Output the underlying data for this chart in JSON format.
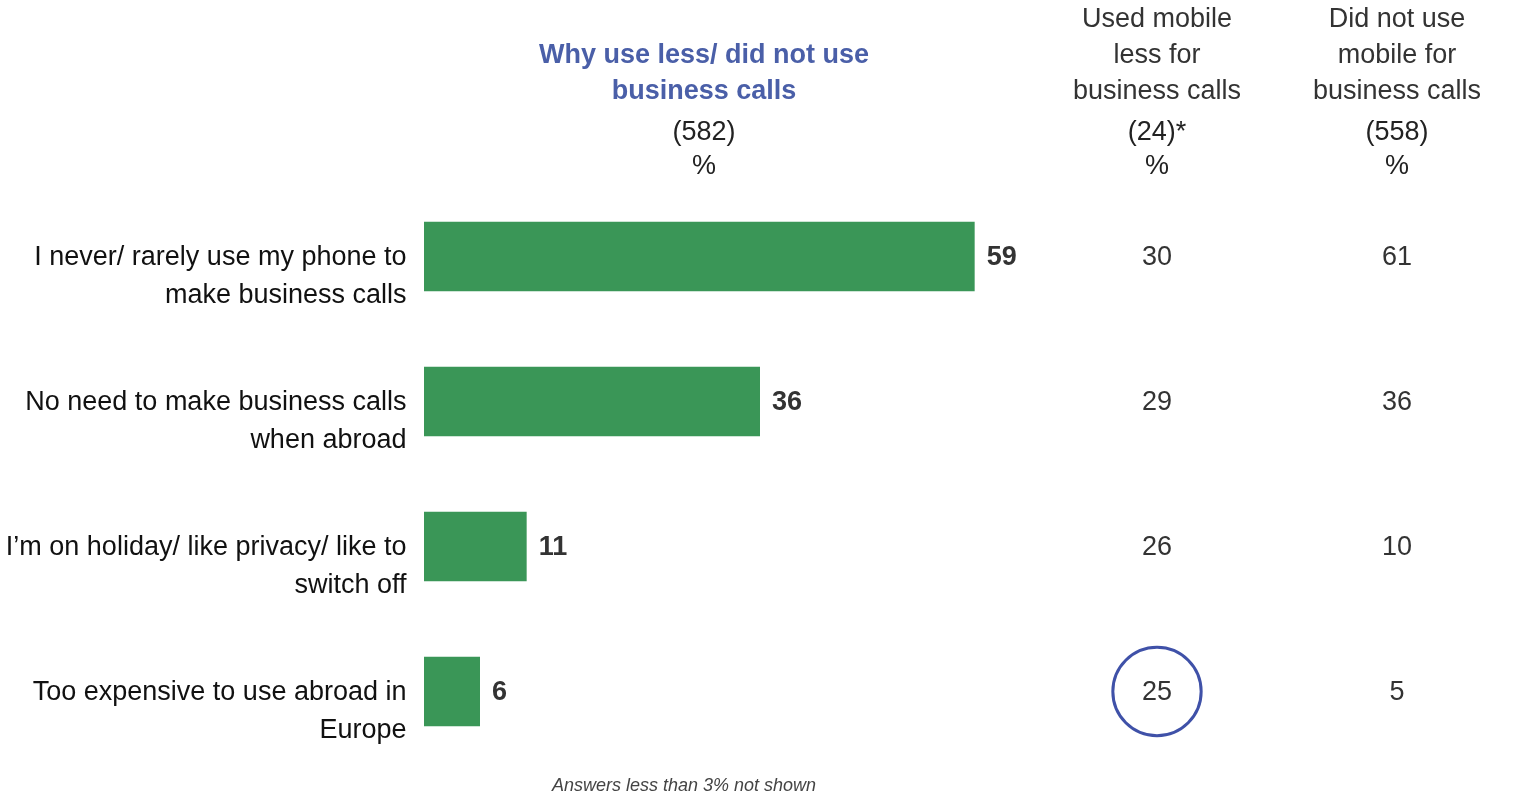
{
  "chart_data": [
    {
      "type": "bar",
      "orientation": "horizontal",
      "title": "Why use less/ did not use\nbusiness calls",
      "subtitle": "(582)\n%",
      "categories": [
        "I never/ rarely use my phone to\nmake business calls",
        "No need to make business calls\nwhen abroad",
        "I’m on holiday/ like privacy/ like to\nswitch off",
        "Too expensive to use abroad in\nEurope"
      ],
      "values": [
        59,
        36,
        11,
        6
      ],
      "color": "#3a9657",
      "data_labels": true,
      "tick_labels": "y",
      "annotations": [
        "Answers less than 3% not shown"
      ]
    },
    {
      "type": "other",
      "title": "Used mobile\nless for\nbusiness calls",
      "subtitle": "(24)*\n%",
      "categories": [
        null,
        null,
        null,
        null
      ],
      "values": [
        30,
        29,
        26,
        25
      ],
      "data_labels": true
    },
    {
      "type": "other",
      "title": "Did not use\nmobile for\nbusiness calls",
      "subtitle": "(558)\n%",
      "categories": [
        null,
        null,
        null,
        null
      ],
      "values": [
        61,
        36,
        10,
        5
      ],
      "data_labels": true
    }
  ]
}
